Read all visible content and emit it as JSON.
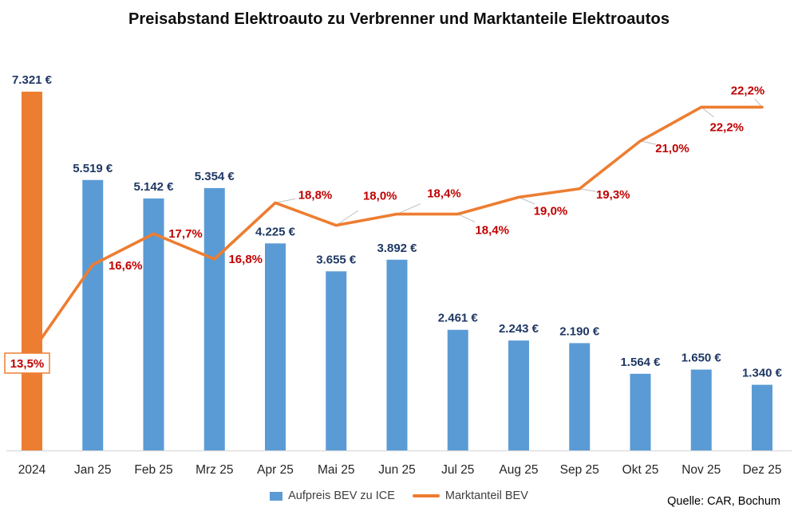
{
  "title": "Preisabstand Elektroauto zu Verbrenner und Marktanteile Elektroautos",
  "source": "Quelle: CAR, Bochum",
  "legend": {
    "bar_label": "Aufpreis BEV zu ICE",
    "line_label": "Marktanteil BEV"
  },
  "colors": {
    "bar": "#5B9BD5",
    "highlight_bar": "#ED7D31",
    "line": "#ED7D31",
    "bar_label": "#1F3864",
    "line_label": "#C00000",
    "axis_line": "#D9D9D9",
    "axis_text": "#262626",
    "leader_line": "#BFBFBF"
  },
  "chart_data": {
    "type": "bar",
    "subtype": "combo bar + line, dual hidden axes",
    "title": "Preisabstand Elektroauto zu Verbrenner und Marktanteile Elektroautos",
    "categories": [
      "2024",
      "Jan 25",
      "Feb 25",
      "Mrz 25",
      "Apr 25",
      "Mai 25",
      "Jun 25",
      "Jul 25",
      "Aug 25",
      "Sep 25",
      "Okt 25",
      "Nov 25",
      "Dez 25"
    ],
    "series": [
      {
        "name": "Aufpreis BEV zu ICE",
        "type": "bar",
        "axis": "primary",
        "unit": "EUR",
        "values": [
          7321,
          5519,
          5142,
          5354,
          4225,
          3655,
          3892,
          2461,
          2243,
          2190,
          1564,
          1650,
          1340
        ],
        "labels": [
          "7.321 €",
          "5.519 €",
          "5.142 €",
          "5.354 €",
          "4.225 €",
          "3.655 €",
          "3.892 €",
          "2.461 €",
          "2.243 €",
          "2.190 €",
          "1.564 €",
          "1.650 €",
          "1.340 €"
        ],
        "highlight_index": 0
      },
      {
        "name": "Marktanteil BEV",
        "type": "line",
        "axis": "secondary",
        "unit": "%",
        "values": [
          13.5,
          16.6,
          17.7,
          16.8,
          18.8,
          18.0,
          18.4,
          18.4,
          19.0,
          19.3,
          21.0,
          22.2,
          22.2
        ],
        "labels": [
          "13,5%",
          "16,6%",
          "17,7%",
          "16,8%",
          "18,8%",
          "18,0%",
          "18,4%",
          "18,4%",
          "19,0%",
          "19,3%",
          "21,0%",
          "22,2%",
          "22,2%"
        ],
        "boxed_label_index": 0
      }
    ],
    "value_axis": {
      "min": 0,
      "max": 7321,
      "visible": false
    },
    "percent_axis": {
      "min": 10,
      "max": 22.75,
      "visible": false
    },
    "grid": false,
    "legend_position": "bottom",
    "xlabel": "",
    "ylabel": ""
  }
}
